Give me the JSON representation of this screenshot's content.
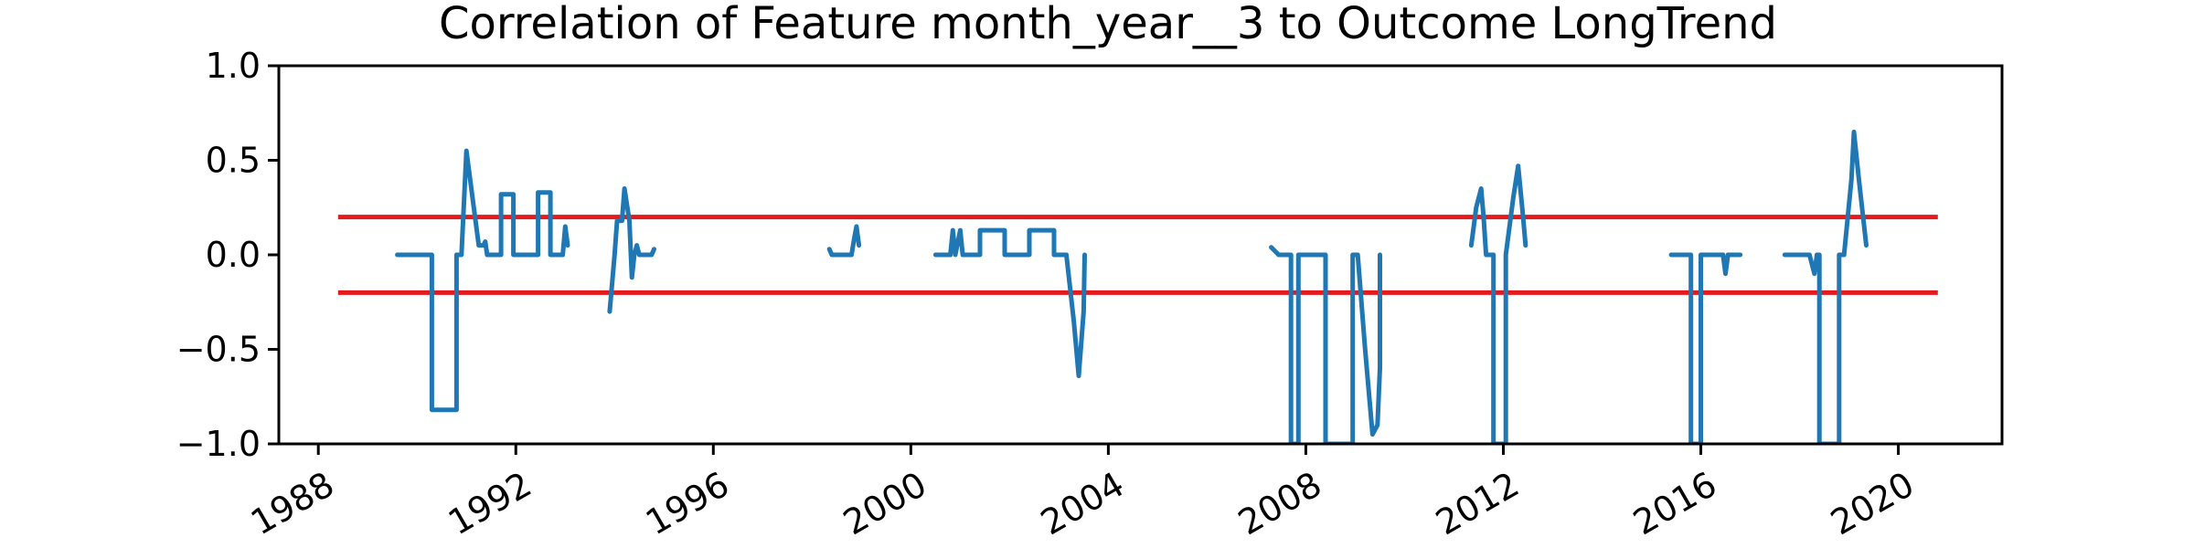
{
  "chart_data": {
    "type": "line",
    "title": "Correlation of Feature month_year__3 to Outcome LongTrend",
    "xlabel": "",
    "ylabel": "",
    "xlim": [
      1987.2,
      2022.1
    ],
    "ylim": [
      -1.0,
      1.0
    ],
    "x_ticks": [
      1988,
      1992,
      1996,
      2000,
      2004,
      2008,
      2012,
      2016,
      2020
    ],
    "x_tick_labels": [
      "1988",
      "1992",
      "1996",
      "2000",
      "2004",
      "2008",
      "2012",
      "2016",
      "2020"
    ],
    "y_ticks": [
      -1.0,
      -0.5,
      0.0,
      0.5,
      1.0
    ],
    "y_tick_labels": [
      "−1.0",
      "−0.5",
      "0.0",
      "0.5",
      "1.0"
    ],
    "grid": false,
    "threshold_lines": [
      {
        "y": 0.2,
        "x_range": [
          1988.4,
          2020.8
        ],
        "color": "#e41a1c"
      },
      {
        "y": -0.2,
        "x_range": [
          1988.4,
          2020.8
        ],
        "color": "#e41a1c"
      }
    ],
    "series_color": "#1f77b4",
    "segments": [
      [
        [
          1989.6,
          0.0
        ],
        [
          1990.3,
          0.0
        ],
        [
          1990.3,
          -0.82
        ],
        [
          1990.8,
          -0.82
        ],
        [
          1990.8,
          0.0
        ],
        [
          1990.9,
          0.0
        ],
        [
          1991.0,
          0.55
        ],
        [
          1991.15,
          0.25
        ],
        [
          1991.25,
          0.05
        ],
        [
          1991.35,
          0.05
        ],
        [
          1991.38,
          0.07
        ],
        [
          1991.42,
          0.0
        ],
        [
          1991.7,
          0.0
        ],
        [
          1991.7,
          0.32
        ],
        [
          1991.95,
          0.32
        ],
        [
          1991.95,
          0.0
        ],
        [
          1992.45,
          0.0
        ],
        [
          1992.45,
          0.33
        ],
        [
          1992.7,
          0.33
        ],
        [
          1992.7,
          0.0
        ],
        [
          1992.95,
          0.0
        ],
        [
          1993.0,
          0.15
        ],
        [
          1993.05,
          0.05
        ]
      ],
      [
        [
          1993.9,
          -0.3
        ],
        [
          1994.0,
          0.0
        ],
        [
          1994.05,
          0.18
        ],
        [
          1994.15,
          0.18
        ],
        [
          1994.2,
          0.35
        ],
        [
          1994.3,
          0.18
        ],
        [
          1994.35,
          -0.12
        ],
        [
          1994.4,
          0.0
        ],
        [
          1994.45,
          0.05
        ],
        [
          1994.5,
          0.0
        ],
        [
          1994.75,
          0.0
        ],
        [
          1994.8,
          0.03
        ]
      ],
      [
        [
          1998.35,
          0.03
        ],
        [
          1998.4,
          0.0
        ],
        [
          1998.8,
          0.0
        ],
        [
          1998.85,
          0.08
        ],
        [
          1998.9,
          0.15
        ],
        [
          1998.95,
          0.05
        ]
      ],
      [
        [
          2000.5,
          0.0
        ],
        [
          2000.8,
          0.0
        ],
        [
          2000.85,
          0.13
        ],
        [
          2000.9,
          0.0
        ],
        [
          2001.0,
          0.13
        ],
        [
          2001.05,
          0.0
        ],
        [
          2001.4,
          0.0
        ],
        [
          2001.4,
          0.13
        ],
        [
          2001.9,
          0.13
        ],
        [
          2001.9,
          0.0
        ],
        [
          2002.4,
          0.0
        ],
        [
          2002.4,
          0.13
        ],
        [
          2002.9,
          0.13
        ],
        [
          2002.9,
          0.0
        ],
        [
          2003.15,
          0.0
        ],
        [
          2003.3,
          -0.35
        ],
        [
          2003.4,
          -0.64
        ],
        [
          2003.5,
          -0.3
        ],
        [
          2003.52,
          0.0
        ]
      ],
      [
        [
          2007.3,
          0.04
        ],
        [
          2007.45,
          0.0
        ],
        [
          2007.7,
          0.0
        ],
        [
          2007.7,
          -1.0
        ],
        [
          2007.85,
          -1.0
        ],
        [
          2007.85,
          0.0
        ],
        [
          2008.4,
          0.0
        ],
        [
          2008.4,
          -1.0
        ],
        [
          2008.95,
          -1.0
        ],
        [
          2008.95,
          0.0
        ],
        [
          2009.05,
          0.0
        ],
        [
          2009.2,
          -0.5
        ],
        [
          2009.35,
          -0.95
        ],
        [
          2009.45,
          -0.9
        ],
        [
          2009.5,
          -0.6
        ],
        [
          2009.5,
          0.0
        ]
      ],
      [
        [
          2011.35,
          0.05
        ],
        [
          2011.45,
          0.25
        ],
        [
          2011.55,
          0.35
        ],
        [
          2011.6,
          0.2
        ],
        [
          2011.65,
          0.0
        ],
        [
          2011.8,
          0.0
        ],
        [
          2011.8,
          -1.0
        ],
        [
          2012.05,
          -1.0
        ],
        [
          2012.05,
          0.0
        ],
        [
          2012.2,
          0.3
        ],
        [
          2012.3,
          0.47
        ],
        [
          2012.4,
          0.2
        ],
        [
          2012.45,
          0.05
        ]
      ],
      [
        [
          2015.4,
          0.0
        ],
        [
          2015.8,
          0.0
        ],
        [
          2015.8,
          -1.0
        ],
        [
          2016.0,
          -1.0
        ],
        [
          2016.0,
          0.0
        ],
        [
          2016.45,
          0.0
        ],
        [
          2016.5,
          -0.1
        ],
        [
          2016.55,
          0.0
        ],
        [
          2016.8,
          0.0
        ]
      ],
      [
        [
          2017.7,
          0.0
        ],
        [
          2018.2,
          0.0
        ],
        [
          2018.3,
          -0.1
        ],
        [
          2018.35,
          0.0
        ],
        [
          2018.4,
          0.0
        ],
        [
          2018.4,
          -1.0
        ],
        [
          2018.8,
          -1.0
        ],
        [
          2018.8,
          0.0
        ],
        [
          2018.9,
          0.0
        ],
        [
          2019.05,
          0.4
        ],
        [
          2019.1,
          0.65
        ],
        [
          2019.2,
          0.4
        ],
        [
          2019.35,
          0.05
        ]
      ]
    ]
  }
}
